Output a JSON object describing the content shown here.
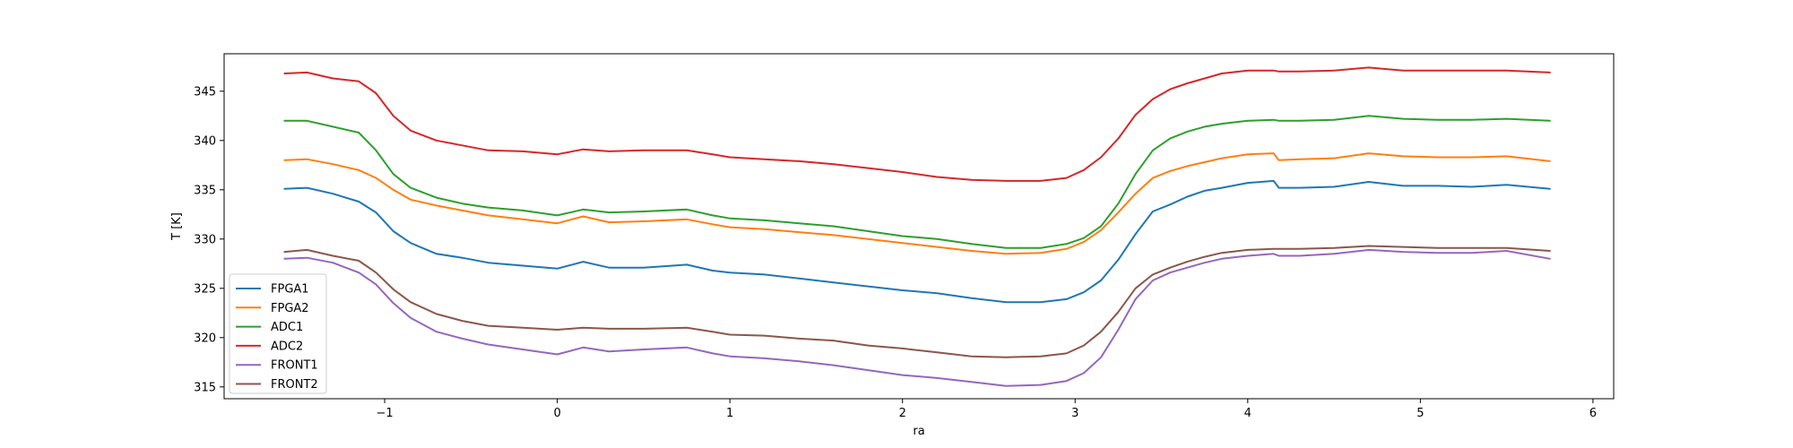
{
  "chart_data": {
    "type": "line",
    "title": "",
    "xlabel": "ra",
    "ylabel": "T [K]",
    "xlim": [
      -1.93,
      6.12
    ],
    "ylim": [
      313.8,
      348.8
    ],
    "xticks": [
      -1,
      0,
      1,
      2,
      3,
      4,
      5,
      6
    ],
    "yticks": [
      315,
      320,
      325,
      330,
      335,
      340,
      345
    ],
    "grid": false,
    "legend_position": "lower-left",
    "series": [
      {
        "name": "FPGA1",
        "color": "#1f77b4",
        "x": [
          -1.58,
          -1.45,
          -1.3,
          -1.15,
          -1.05,
          -0.95,
          -0.85,
          -0.7,
          -0.55,
          -0.4,
          -0.2,
          0,
          0.15,
          0.3,
          0.5,
          0.75,
          0.9,
          1.0,
          1.2,
          1.4,
          1.6,
          1.8,
          2.0,
          2.2,
          2.4,
          2.6,
          2.8,
          2.95,
          3.05,
          3.15,
          3.25,
          3.35,
          3.45,
          3.55,
          3.65,
          3.75,
          3.85,
          4.0,
          4.15,
          4.18,
          4.3,
          4.5,
          4.7,
          4.9,
          5.1,
          5.3,
          5.5,
          5.75
        ],
        "values": [
          335.1,
          335.2,
          334.6,
          333.8,
          332.7,
          330.8,
          329.6,
          328.5,
          328.1,
          327.6,
          327.3,
          327.0,
          327.7,
          327.1,
          327.1,
          327.4,
          326.8,
          326.6,
          326.4,
          326.0,
          325.6,
          325.2,
          324.8,
          324.5,
          324.0,
          323.6,
          323.6,
          323.9,
          324.6,
          325.8,
          327.9,
          330.5,
          332.8,
          333.5,
          334.3,
          334.9,
          335.2,
          335.7,
          335.9,
          335.2,
          335.2,
          335.3,
          335.8,
          335.4,
          335.4,
          335.3,
          335.5,
          335.1
        ]
      },
      {
        "name": "FPGA2",
        "color": "#ff7f0e",
        "x": [
          -1.58,
          -1.45,
          -1.3,
          -1.15,
          -1.05,
          -0.95,
          -0.85,
          -0.7,
          -0.55,
          -0.4,
          -0.2,
          0,
          0.15,
          0.3,
          0.5,
          0.75,
          0.9,
          1.0,
          1.2,
          1.4,
          1.6,
          1.8,
          2.0,
          2.2,
          2.4,
          2.6,
          2.8,
          2.95,
          3.05,
          3.15,
          3.25,
          3.35,
          3.45,
          3.55,
          3.65,
          3.75,
          3.85,
          4.0,
          4.15,
          4.18,
          4.3,
          4.5,
          4.7,
          4.9,
          5.1,
          5.3,
          5.5,
          5.75
        ],
        "values": [
          338.0,
          338.1,
          337.6,
          337.0,
          336.2,
          335.0,
          334.0,
          333.4,
          332.9,
          332.4,
          332.0,
          331.6,
          332.3,
          331.7,
          331.8,
          332.0,
          331.5,
          331.2,
          331.0,
          330.7,
          330.4,
          330.0,
          329.6,
          329.2,
          328.8,
          328.5,
          328.6,
          329.0,
          329.7,
          330.9,
          332.7,
          334.6,
          336.2,
          336.9,
          337.4,
          337.8,
          338.2,
          338.6,
          338.7,
          338.0,
          338.1,
          338.2,
          338.7,
          338.4,
          338.3,
          338.3,
          338.4,
          337.9
        ]
      },
      {
        "name": "ADC1",
        "color": "#2ca02c",
        "x": [
          -1.58,
          -1.45,
          -1.3,
          -1.15,
          -1.05,
          -0.95,
          -0.85,
          -0.7,
          -0.55,
          -0.4,
          -0.2,
          0,
          0.15,
          0.3,
          0.5,
          0.75,
          0.9,
          1.0,
          1.2,
          1.4,
          1.6,
          1.8,
          2.0,
          2.2,
          2.4,
          2.6,
          2.8,
          2.95,
          3.05,
          3.15,
          3.25,
          3.35,
          3.45,
          3.55,
          3.65,
          3.75,
          3.85,
          4.0,
          4.15,
          4.18,
          4.3,
          4.5,
          4.7,
          4.9,
          5.1,
          5.3,
          5.5,
          5.75
        ],
        "values": [
          342.0,
          342.0,
          341.4,
          340.8,
          339.0,
          336.6,
          335.2,
          334.2,
          333.6,
          333.2,
          332.9,
          332.4,
          333.0,
          332.7,
          332.8,
          333.0,
          332.4,
          332.1,
          331.9,
          331.6,
          331.3,
          330.8,
          330.3,
          330.0,
          329.5,
          329.1,
          329.1,
          329.5,
          330.1,
          331.3,
          333.6,
          336.6,
          339.0,
          340.2,
          340.9,
          341.4,
          341.7,
          342.0,
          342.1,
          342.0,
          342.0,
          342.1,
          342.5,
          342.2,
          342.1,
          342.1,
          342.2,
          342.0
        ]
      },
      {
        "name": "ADC2",
        "color": "#d62728",
        "x": [
          -1.58,
          -1.45,
          -1.3,
          -1.15,
          -1.05,
          -0.95,
          -0.85,
          -0.7,
          -0.55,
          -0.4,
          -0.2,
          0,
          0.15,
          0.3,
          0.5,
          0.75,
          0.9,
          1.0,
          1.2,
          1.4,
          1.6,
          1.8,
          2.0,
          2.2,
          2.4,
          2.6,
          2.8,
          2.95,
          3.05,
          3.15,
          3.25,
          3.35,
          3.45,
          3.55,
          3.65,
          3.75,
          3.85,
          4.0,
          4.15,
          4.18,
          4.3,
          4.5,
          4.7,
          4.9,
          5.1,
          5.3,
          5.5,
          5.75
        ],
        "values": [
          346.8,
          346.9,
          346.3,
          346.0,
          344.8,
          342.5,
          341.0,
          340.0,
          339.5,
          339.0,
          338.9,
          338.6,
          339.1,
          338.9,
          339.0,
          339.0,
          338.6,
          338.3,
          338.1,
          337.9,
          337.6,
          337.2,
          336.8,
          336.3,
          336.0,
          335.9,
          335.9,
          336.2,
          337.0,
          338.3,
          340.2,
          342.6,
          344.2,
          345.2,
          345.8,
          346.3,
          346.8,
          347.1,
          347.1,
          347.0,
          347.0,
          347.1,
          347.4,
          347.1,
          347.1,
          347.1,
          347.1,
          346.9
        ]
      },
      {
        "name": "FRONT1",
        "color": "#9467bd",
        "x": [
          -1.58,
          -1.45,
          -1.3,
          -1.15,
          -1.05,
          -0.95,
          -0.85,
          -0.7,
          -0.55,
          -0.4,
          -0.2,
          0,
          0.15,
          0.3,
          0.5,
          0.75,
          0.9,
          1.0,
          1.2,
          1.4,
          1.6,
          1.8,
          2.0,
          2.2,
          2.4,
          2.6,
          2.8,
          2.95,
          3.05,
          3.15,
          3.25,
          3.35,
          3.45,
          3.55,
          3.65,
          3.75,
          3.85,
          4.0,
          4.15,
          4.18,
          4.3,
          4.5,
          4.7,
          4.9,
          5.1,
          5.3,
          5.5,
          5.75
        ],
        "values": [
          328.0,
          328.1,
          327.6,
          326.6,
          325.4,
          323.5,
          322.0,
          320.6,
          319.9,
          319.3,
          318.8,
          318.3,
          319.0,
          318.6,
          318.8,
          319.0,
          318.4,
          318.1,
          317.9,
          317.6,
          317.2,
          316.7,
          316.2,
          315.9,
          315.5,
          315.1,
          315.2,
          315.6,
          316.4,
          318.0,
          320.8,
          323.9,
          325.8,
          326.6,
          327.1,
          327.6,
          328.0,
          328.3,
          328.5,
          328.3,
          328.3,
          328.5,
          328.9,
          328.7,
          328.6,
          328.6,
          328.8,
          328.0
        ]
      },
      {
        "name": "FRONT2",
        "color": "#8c564b",
        "x": [
          -1.58,
          -1.45,
          -1.3,
          -1.15,
          -1.05,
          -0.95,
          -0.85,
          -0.7,
          -0.55,
          -0.4,
          -0.2,
          0,
          0.15,
          0.3,
          0.5,
          0.75,
          0.9,
          1.0,
          1.2,
          1.4,
          1.6,
          1.8,
          2.0,
          2.2,
          2.4,
          2.6,
          2.8,
          2.95,
          3.05,
          3.15,
          3.25,
          3.35,
          3.45,
          3.55,
          3.65,
          3.75,
          3.85,
          4.0,
          4.15,
          4.18,
          4.3,
          4.5,
          4.7,
          4.9,
          5.1,
          5.3,
          5.5,
          5.75
        ],
        "values": [
          328.7,
          328.9,
          328.3,
          327.8,
          326.6,
          324.9,
          323.6,
          322.4,
          321.7,
          321.2,
          321.0,
          320.8,
          321.0,
          320.9,
          320.9,
          321.0,
          320.6,
          320.3,
          320.2,
          319.9,
          319.7,
          319.2,
          318.9,
          318.5,
          318.1,
          318.0,
          318.1,
          318.4,
          319.2,
          320.6,
          322.6,
          325.0,
          326.4,
          327.1,
          327.7,
          328.2,
          328.6,
          328.9,
          329.0,
          329.0,
          329.0,
          329.1,
          329.3,
          329.2,
          329.1,
          329.1,
          329.1,
          328.8
        ]
      }
    ]
  }
}
